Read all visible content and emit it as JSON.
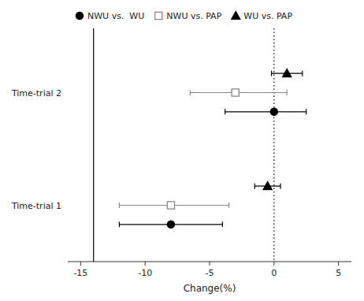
{
  "chart_data": {
    "type": "errorbar",
    "orientation": "horizontal",
    "xlabel": "Change(%)",
    "categories": [
      "Time-trial 1",
      "Time-trial 2"
    ],
    "xlim": [
      -16,
      6
    ],
    "xticks": [
      -15,
      -10,
      -5,
      0,
      5
    ],
    "grid": false,
    "legend": "top",
    "reference_lines": [
      {
        "x": 0,
        "line_style": "dotted"
      },
      {
        "x": -14.0,
        "line_style": "solid"
      }
    ],
    "series": [
      {
        "name": "NWU vs.  WU",
        "color": "#000000",
        "marker": "circle",
        "values": [
          -8.0,
          0.0
        ],
        "error_low": [
          4.0,
          3.8
        ],
        "error_high": [
          4.0,
          2.5
        ]
      },
      {
        "name": "NWU vs. PAP",
        "color": "#888888",
        "marker": "open-square",
        "values": [
          -8.0,
          -3.0
        ],
        "error_low": [
          4.0,
          3.5
        ],
        "error_high": [
          4.5,
          4.0
        ]
      },
      {
        "name": "WU vs. PAP",
        "color": "#000000",
        "marker": "triangle",
        "values": [
          -0.5,
          1.0
        ],
        "error_low": [
          1.0,
          1.2
        ],
        "error_high": [
          1.0,
          1.2
        ]
      }
    ]
  }
}
